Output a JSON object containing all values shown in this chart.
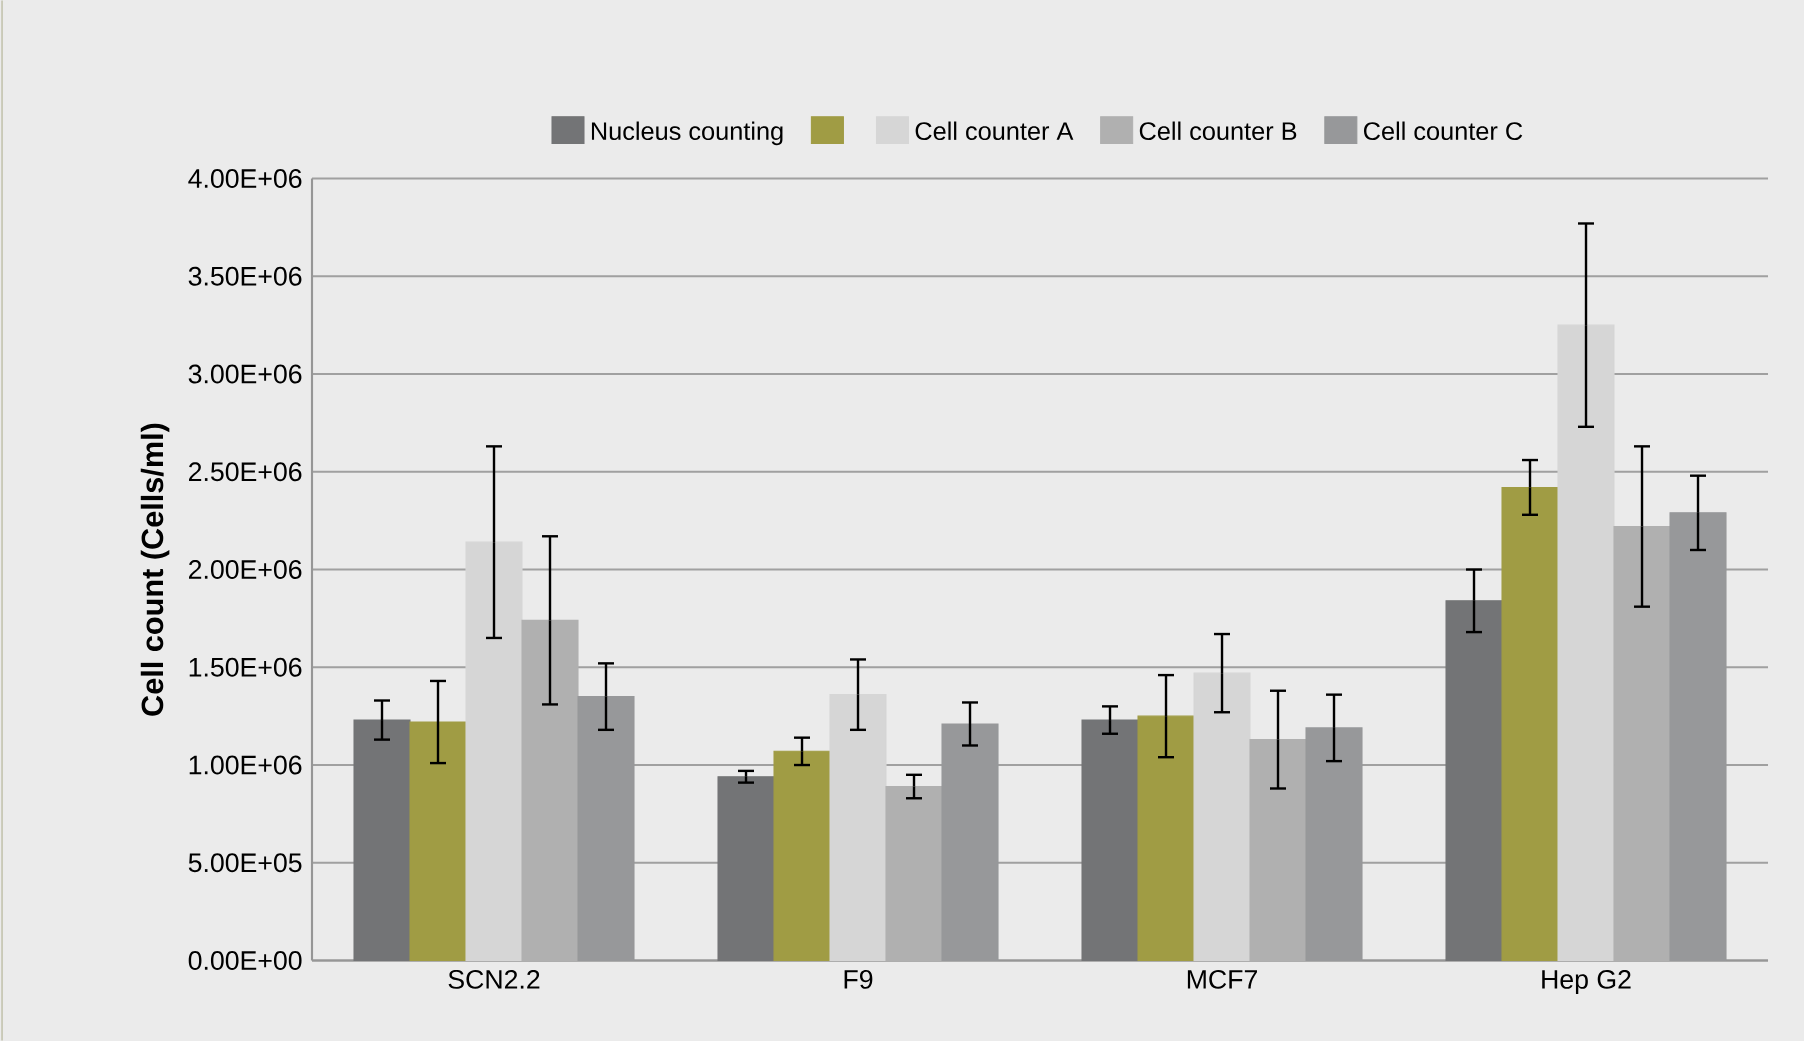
{
  "chart_data": {
    "type": "bar",
    "ylabel": "Cell count (Cells/ml)",
    "categories": [
      "SCN2.2",
      "F9",
      "MCF7",
      "Hep G2"
    ],
    "series": [
      {
        "name": "Nucleus counting",
        "color": "#737476",
        "values": [
          1230000,
          940000,
          1230000,
          1840000
        ],
        "errors": [
          100000,
          30000,
          70000,
          160000
        ]
      },
      {
        "color": "#a09c44",
        "values": [
          1220000,
          1070000,
          1250000,
          2420000
        ],
        "errors": [
          210000,
          70000,
          210000,
          140000
        ]
      },
      {
        "name": "Cell counter A",
        "color": "#d6d6d6",
        "values": [
          2140000,
          1360000,
          1470000,
          3250000
        ],
        "errors": [
          490000,
          180000,
          200000,
          520000
        ]
      },
      {
        "name": "Cell counter B",
        "color": "#b0b0b0",
        "values": [
          1740000,
          890000,
          1130000,
          2220000
        ],
        "errors": [
          430000,
          60000,
          250000,
          410000
        ]
      },
      {
        "name": "Cell counter C",
        "color": "#97989a",
        "values": [
          1350000,
          1210000,
          1190000,
          2290000
        ],
        "errors": [
          170000,
          110000,
          170000,
          190000
        ]
      }
    ],
    "ylim": [
      0,
      4000000
    ],
    "yticks": [
      {
        "value": 0,
        "label": "0.00E+00"
      },
      {
        "value": 500000,
        "label": "5.00E+05"
      },
      {
        "value": 1000000,
        "label": "1.00E+06"
      },
      {
        "value": 1500000,
        "label": "1.50E+06"
      },
      {
        "value": 2000000,
        "label": "2.00E+06"
      },
      {
        "value": 2500000,
        "label": "2.50E+06"
      },
      {
        "value": 3000000,
        "label": "3.00E+06"
      },
      {
        "value": 3500000,
        "label": "3.50E+06"
      },
      {
        "value": 4000000,
        "label": "4.00E+06"
      }
    ],
    "grid": "y",
    "legend": "top"
  }
}
